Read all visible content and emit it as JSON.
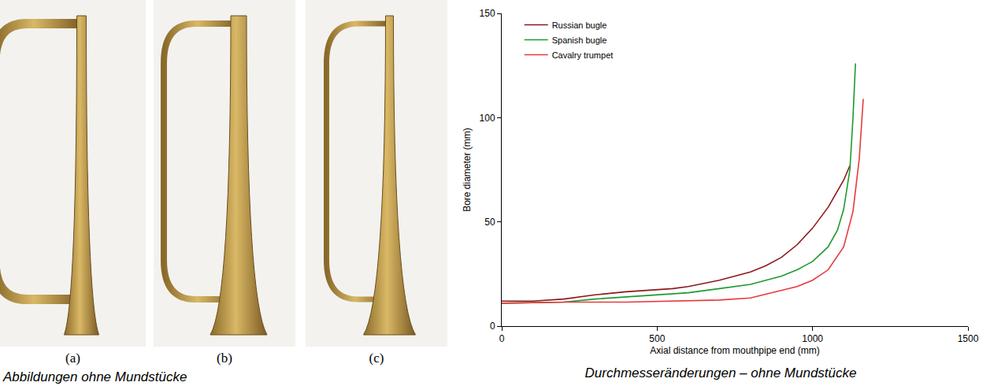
{
  "photos": {
    "labels": [
      "(a)",
      "(b)",
      "(c)"
    ],
    "caption": "Abbildungen ohne Mundstücke"
  },
  "chart_caption": "Durchmesseränderungen – ohne Mundstücke",
  "chart_data": {
    "type": "line",
    "xlabel": "Axial distance from mouthpipe end (mm)",
    "ylabel": "Bore diameter (mm)",
    "xlim": [
      0,
      1500
    ],
    "ylim": [
      0,
      150
    ],
    "xticks": [
      0,
      500,
      1000,
      1500
    ],
    "yticks": [
      0,
      50,
      100,
      150
    ],
    "grid": false,
    "legend": "upper left",
    "series": [
      {
        "name": "Russian bugle",
        "color": "#8b1a1a",
        "x": [
          0,
          100,
          200,
          300,
          400,
          500,
          550,
          600,
          700,
          800,
          850,
          900,
          950,
          1000,
          1050,
          1100,
          1120
        ],
        "values": [
          12,
          12,
          13,
          15,
          16.5,
          17.5,
          18,
          19,
          22,
          26,
          29,
          33,
          39,
          47,
          57,
          70,
          77
        ]
      },
      {
        "name": "Spanish bugle",
        "color": "#1e9a2e",
        "x": [
          0,
          200,
          300,
          400,
          500,
          550,
          600,
          700,
          800,
          900,
          950,
          1000,
          1050,
          1080,
          1100,
          1120,
          1130,
          1138
        ],
        "values": [
          11,
          11.5,
          13,
          14,
          15,
          15.5,
          16,
          18,
          20,
          24,
          27,
          31,
          38,
          46,
          56,
          75,
          100,
          126
        ]
      },
      {
        "name": "Cavalry trumpet",
        "color": "#e8393c",
        "x": [
          0,
          200,
          400,
          600,
          700,
          800,
          900,
          950,
          1000,
          1050,
          1100,
          1130,
          1150,
          1163
        ],
        "values": [
          11,
          11.5,
          11.5,
          12,
          12.5,
          13.5,
          17,
          19,
          22,
          27,
          38,
          55,
          80,
          109
        ]
      }
    ]
  }
}
